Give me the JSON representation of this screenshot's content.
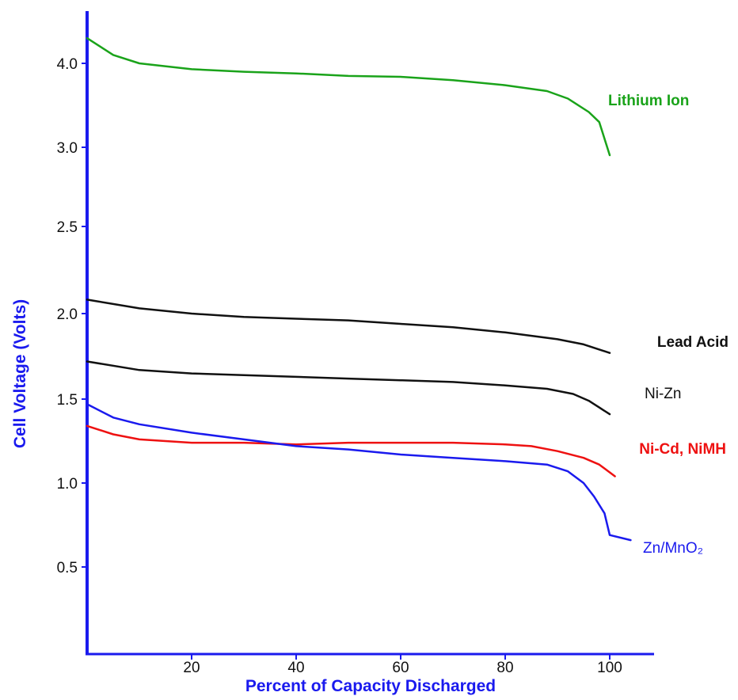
{
  "chart_data": {
    "type": "line",
    "title": "",
    "xlabel": "Percent of Capacity Discharged",
    "ylabel": "Cell Voltage (Volts)",
    "xlim": [
      0,
      108
    ],
    "x_ticks": [
      20,
      40,
      60,
      80,
      100
    ],
    "x_tick_labels": [
      "20",
      "40",
      "60",
      "80",
      "100"
    ],
    "y_ticks": [
      0.5,
      1.0,
      1.5,
      2.0,
      2.5,
      3.0,
      4.0
    ],
    "y_tick_labels": [
      "0.5",
      "1.0",
      "1.5",
      "2.0",
      "2.5",
      "3.0",
      "4.0"
    ],
    "y_scale": "piecewise: 0.5 V per division below 3.0; 1.0 V per division from 3.0 to 4.0",
    "grid": false,
    "legend": "none; series labelled at right end of curves",
    "axis_color": "#1a1aee",
    "series": [
      {
        "name": "Lithium Ion",
        "color": "#1aa31a",
        "label_bold": true,
        "x": [
          0,
          5,
          10,
          20,
          30,
          40,
          50,
          60,
          70,
          80,
          88,
          92,
          96,
          98,
          100
        ],
        "y": [
          4.3,
          4.1,
          4.0,
          3.93,
          3.9,
          3.88,
          3.85,
          3.84,
          3.8,
          3.74,
          3.67,
          3.58,
          3.42,
          3.3,
          2.95
        ]
      },
      {
        "name": "Lead Acid",
        "color": "#111111",
        "label_bold": true,
        "x": [
          0,
          10,
          20,
          30,
          40,
          50,
          60,
          70,
          80,
          90,
          95,
          100
        ],
        "y": [
          2.08,
          2.03,
          2.0,
          1.98,
          1.97,
          1.96,
          1.94,
          1.92,
          1.89,
          1.85,
          1.82,
          1.77
        ]
      },
      {
        "name": "Ni-Zn",
        "color": "#111111",
        "label_bold": false,
        "x": [
          0,
          10,
          20,
          30,
          40,
          50,
          60,
          70,
          80,
          88,
          93,
          96,
          98,
          100
        ],
        "y": [
          1.72,
          1.67,
          1.65,
          1.64,
          1.63,
          1.62,
          1.61,
          1.6,
          1.58,
          1.56,
          1.53,
          1.49,
          1.45,
          1.41
        ]
      },
      {
        "name": "Ni-Cd,  NiMH",
        "color": "#ee1111",
        "label_bold": true,
        "x": [
          0,
          5,
          10,
          20,
          30,
          40,
          50,
          60,
          70,
          80,
          85,
          90,
          95,
          98,
          101
        ],
        "y": [
          1.34,
          1.29,
          1.26,
          1.24,
          1.24,
          1.23,
          1.24,
          1.24,
          1.24,
          1.23,
          1.22,
          1.19,
          1.15,
          1.11,
          1.04
        ]
      },
      {
        "name": "Zn/MnO₂",
        "color": "#1a1aee",
        "label_bold": false,
        "x": [
          0,
          5,
          10,
          20,
          30,
          40,
          50,
          60,
          70,
          80,
          88,
          92,
          95,
          97,
          99,
          100,
          104
        ],
        "y": [
          1.47,
          1.39,
          1.35,
          1.3,
          1.26,
          1.22,
          1.2,
          1.17,
          1.15,
          1.13,
          1.11,
          1.07,
          1.0,
          0.92,
          0.82,
          0.69,
          0.66
        ]
      }
    ]
  }
}
